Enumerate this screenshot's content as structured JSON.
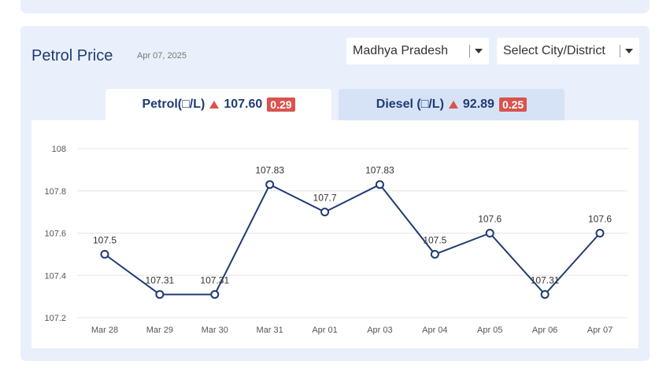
{
  "card": {
    "title": "Petrol Price",
    "date": "Apr 07, 2025"
  },
  "filters": {
    "state": "Madhya Pradesh",
    "city": "Select City/District"
  },
  "tabs": {
    "petrol": {
      "label": "Petrol(□/L)",
      "price": "107.60",
      "change": "0.29"
    },
    "diesel": {
      "label": "Diesel (□/L)",
      "price": "92.89",
      "change": "0.25"
    }
  },
  "colors": {
    "accent": "#1f3b73",
    "up": "#d9534f",
    "line": "#1f3b73"
  },
  "chart_data": {
    "type": "line",
    "categories": [
      "Mar 28",
      "Mar 29",
      "Mar 30",
      "Mar 31",
      "Apr 01",
      "Apr 03",
      "Apr 04",
      "Apr 05",
      "Apr 06",
      "Apr 07"
    ],
    "values": [
      107.5,
      107.31,
      107.31,
      107.83,
      107.7,
      107.83,
      107.5,
      107.6,
      107.31,
      107.6
    ],
    "labels": [
      "107.5",
      "107.31",
      "107.31",
      "107.83",
      "107.7",
      "107.83",
      "107.5",
      "107.6",
      "107.31",
      "107.6"
    ],
    "ylim": [
      107.2,
      108
    ],
    "yticks": [
      "107.2",
      "107.4",
      "107.6",
      "107.8",
      "108"
    ],
    "grid": true
  }
}
